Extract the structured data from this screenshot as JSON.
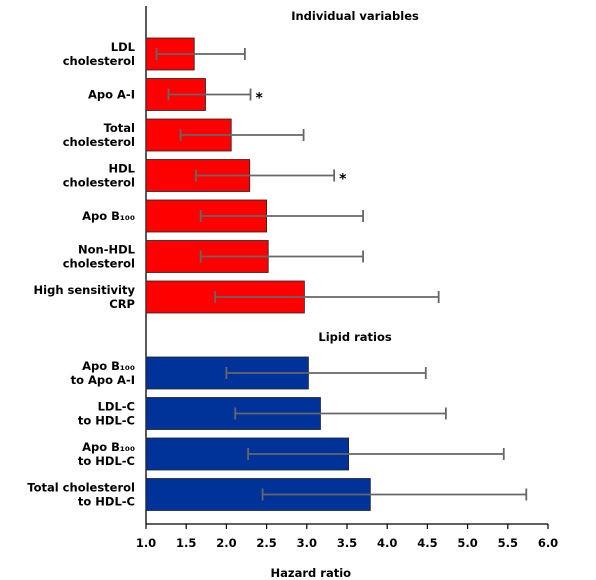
{
  "chart_data": {
    "type": "bar",
    "orientation": "horizontal",
    "xlabel": "Hazard ratio",
    "xlim": [
      1.0,
      6.0
    ],
    "xticks": [
      "1.0",
      "1.5",
      "2.0",
      "2.5",
      "3.0",
      "3.5",
      "4.0",
      "4.5",
      "5.0",
      "5.5",
      "6.0"
    ],
    "grid": false,
    "groups": [
      {
        "title": "Individual variables",
        "color": "#ff0000",
        "bars": [
          {
            "label": [
              "LDL",
              "cholesterol"
            ],
            "value": 1.6,
            "ci": [
              1.13,
              2.23
            ],
            "significant": false
          },
          {
            "label": [
              "Apo A-I"
            ],
            "value": 1.74,
            "ci": [
              1.28,
              2.3
            ],
            "significant": true
          },
          {
            "label": [
              "Total",
              "cholesterol"
            ],
            "value": 2.06,
            "ci": [
              1.43,
              2.96
            ],
            "significant": false
          },
          {
            "label": [
              "HDL",
              "cholesterol"
            ],
            "value": 2.29,
            "ci": [
              1.62,
              3.34
            ],
            "significant": true
          },
          {
            "label": [
              "Apo B₁₀₀"
            ],
            "value": 2.5,
            "ci": [
              1.68,
              3.7
            ],
            "significant": false
          },
          {
            "label": [
              "Non-HDL",
              "cholesterol"
            ],
            "value": 2.52,
            "ci": [
              1.68,
              3.7
            ],
            "significant": false
          },
          {
            "label": [
              "High sensitivity",
              "CRP"
            ],
            "value": 2.97,
            "ci": [
              1.86,
              4.64
            ],
            "significant": false
          }
        ]
      },
      {
        "title": "Lipid  ratios",
        "color": "#003399",
        "bars": [
          {
            "label": [
              "Apo B₁₀₀",
              "to Apo A-I"
            ],
            "value": 3.02,
            "ci": [
              2.0,
              4.48
            ],
            "significant": false
          },
          {
            "label": [
              "LDL-C",
              "to HDL-C"
            ],
            "value": 3.17,
            "ci": [
              2.11,
              4.73
            ],
            "significant": false
          },
          {
            "label": [
              "Apo B₁₀₀",
              "to HDL-C"
            ],
            "value": 3.52,
            "ci": [
              2.27,
              5.45
            ],
            "significant": false
          },
          {
            "label": [
              "Total cholesterol",
              "to HDL-C"
            ],
            "value": 3.79,
            "ci": [
              2.45,
              5.73
            ],
            "significant": false
          }
        ]
      }
    ],
    "significance_marker": "*"
  }
}
